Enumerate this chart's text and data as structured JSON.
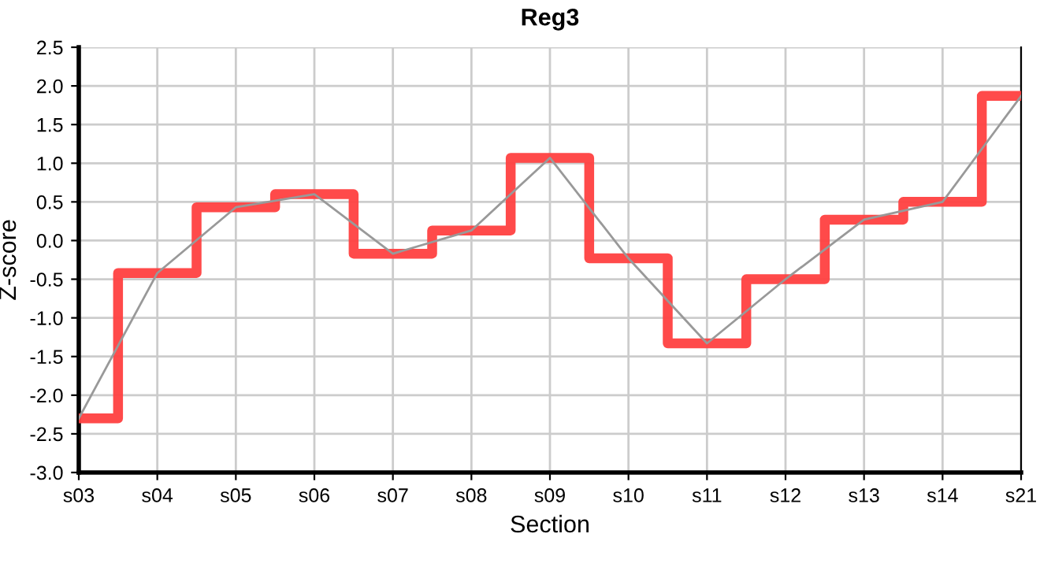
{
  "chart_data": {
    "type": "step",
    "title": "Reg3",
    "xlabel": "Section",
    "ylabel": "Z-score",
    "categories": [
      "s03",
      "s04",
      "s05",
      "s06",
      "s07",
      "s08",
      "s09",
      "s10",
      "s11",
      "s12",
      "s13",
      "s14",
      "s21"
    ],
    "series": [
      {
        "color": "#ff4040",
        "values": [
          -2.3,
          -0.42,
          0.43,
          0.6,
          -0.17,
          0.13,
          1.07,
          -0.23,
          -1.33,
          -0.5,
          0.27,
          0.5,
          1.87
        ]
      },
      {
        "type": "line",
        "color": "#999999",
        "values": [
          -2.3,
          -0.42,
          0.43,
          0.6,
          -0.17,
          0.13,
          1.07,
          -0.23,
          -1.33,
          -0.5,
          0.27,
          0.5,
          1.87
        ]
      }
    ],
    "ylim": [
      -3.0,
      2.5
    ],
    "yticks": [
      {
        "value": -3.0,
        "label": "-3.0"
      },
      {
        "value": -2.5,
        "label": "-2.5"
      },
      {
        "value": -2.0,
        "label": "-2.0"
      },
      {
        "value": -1.5,
        "label": "-1.5"
      },
      {
        "value": -1.0,
        "label": "-1.0"
      },
      {
        "value": -0.5,
        "label": "-0.5"
      },
      {
        "value": 0.0,
        "label": "0.0"
      },
      {
        "value": 0.5,
        "label": "0.5"
      },
      {
        "value": 1.0,
        "label": "1.0"
      },
      {
        "value": 1.5,
        "label": "1.5"
      },
      {
        "value": 2.0,
        "label": "2.0"
      },
      {
        "value": 2.5,
        "label": "2.5"
      }
    ],
    "grid": true,
    "legend": false
  }
}
